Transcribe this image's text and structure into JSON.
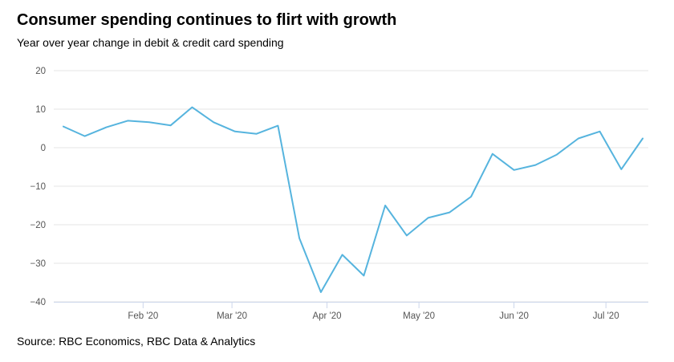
{
  "header": {
    "title": "Consumer spending continues to flirt with growth",
    "subtitle": "Year over year change in debit & credit card spending"
  },
  "footer": {
    "source": "Source: RBC Economics, RBC Data & Analytics"
  },
  "chart_data": {
    "type": "line",
    "title": "Consumer spending continues to flirt with growth",
    "subtitle": "Year over year change in debit & credit card spending",
    "xlabel": "",
    "ylabel": "",
    "ylim": [
      -40,
      20
    ],
    "yticks": [
      20,
      10,
      0,
      -10,
      -20,
      -30,
      -40
    ],
    "ytick_labels": [
      "20",
      "10",
      "0",
      "−10",
      "−20",
      "−30",
      "−40"
    ],
    "xlim": [
      "2020-01-06",
      "2020-07-13"
    ],
    "xticks": [
      {
        "date": "2020-02-01",
        "label": "Feb '20"
      },
      {
        "date": "2020-03-01",
        "label": "Mar '20"
      },
      {
        "date": "2020-04-01",
        "label": "Apr '20"
      },
      {
        "date": "2020-05-01",
        "label": "May '20"
      },
      {
        "date": "2020-06-01",
        "label": "Jun '20"
      },
      {
        "date": "2020-07-01",
        "label": "Jul '20"
      }
    ],
    "grid": true,
    "line_color": "#56b4de",
    "series": [
      {
        "x": [
          "2020-01-06",
          "2020-01-13",
          "2020-01-20",
          "2020-01-27",
          "2020-02-03",
          "2020-02-10",
          "2020-02-17",
          "2020-02-24",
          "2020-03-02",
          "2020-03-09",
          "2020-03-16",
          "2020-03-23",
          "2020-03-30",
          "2020-04-06",
          "2020-04-13",
          "2020-04-20",
          "2020-04-27",
          "2020-05-04",
          "2020-05-11",
          "2020-05-18",
          "2020-05-25",
          "2020-06-01",
          "2020-06-08",
          "2020-06-15",
          "2020-06-22",
          "2020-06-29",
          "2020-07-06",
          "2020-07-13"
        ],
        "values": [
          5.5,
          3.0,
          5.3,
          7.0,
          6.6,
          5.8,
          10.5,
          6.6,
          4.2,
          3.6,
          5.7,
          -23.5,
          -37.5,
          -27.8,
          -33.2,
          -15.0,
          -22.8,
          -18.2,
          -16.8,
          -12.7,
          -1.6,
          -5.8,
          -4.5,
          -1.8,
          2.4,
          4.2,
          -5.6,
          2.4
        ]
      }
    ]
  }
}
